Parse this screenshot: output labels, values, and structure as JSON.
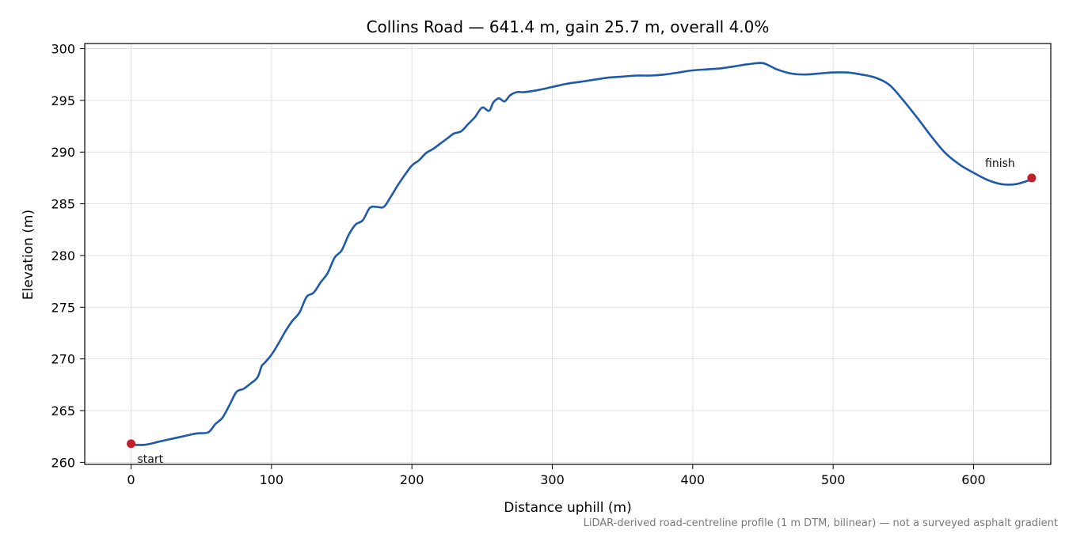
{
  "chart_data": {
    "type": "line",
    "title": "Collins Road — 641.4 m, gain 25.7 m, overall 4.0%",
    "xlabel": "Distance uphill (m)",
    "ylabel": "Elevation (m)",
    "xlim": [
      -33,
      655
    ],
    "ylim": [
      259.8,
      300.5
    ],
    "xticks": [
      0,
      100,
      200,
      300,
      400,
      500,
      600
    ],
    "yticks": [
      260,
      265,
      270,
      275,
      280,
      285,
      290,
      295,
      300
    ],
    "grid": true,
    "footnote": "LiDAR-derived road-centreline profile (1 m DTM, bilinear) — not a surveyed asphalt gradient",
    "colors": {
      "line": "#1f5aa8",
      "marker": "#c0202a",
      "grid": "#e0e0e0"
    },
    "series": [
      {
        "x": [
          0,
          10,
          20,
          30,
          40,
          47,
          55,
          60,
          65,
          70,
          75,
          80,
          85,
          90,
          93,
          95,
          100,
          105,
          110,
          115,
          120,
          125,
          130,
          135,
          140,
          145,
          150,
          155,
          160,
          165,
          170,
          175,
          180,
          185,
          190,
          195,
          200,
          205,
          210,
          215,
          220,
          225,
          230,
          235,
          240,
          245,
          250,
          255,
          258,
          262,
          266,
          270,
          275,
          280,
          290,
          300,
          310,
          320,
          330,
          340,
          350,
          360,
          370,
          380,
          390,
          400,
          410,
          420,
          430,
          440,
          450,
          460,
          470,
          480,
          490,
          500,
          510,
          520,
          530,
          540,
          550,
          560,
          570,
          580,
          590,
          600,
          610,
          620,
          630,
          640,
          641.4
        ],
        "y": [
          261.7,
          261.7,
          262.0,
          262.3,
          262.6,
          262.8,
          262.9,
          263.7,
          264.3,
          265.5,
          266.8,
          267.1,
          267.6,
          268.2,
          269.3,
          269.6,
          270.4,
          271.5,
          272.7,
          273.7,
          274.5,
          276.0,
          276.4,
          277.4,
          278.3,
          279.8,
          280.5,
          282.0,
          283.0,
          283.4,
          284.6,
          284.7,
          284.7,
          285.7,
          286.8,
          287.8,
          288.7,
          289.2,
          289.9,
          290.3,
          290.8,
          291.3,
          291.8,
          292.0,
          292.7,
          293.4,
          294.3,
          294.0,
          294.8,
          295.2,
          294.9,
          295.5,
          295.8,
          295.8,
          296.0,
          296.3,
          296.6,
          296.8,
          297.0,
          297.2,
          297.3,
          297.4,
          297.4,
          297.5,
          297.7,
          297.9,
          298.0,
          298.1,
          298.3,
          298.5,
          298.6,
          298.0,
          297.6,
          297.5,
          297.6,
          297.7,
          297.7,
          297.5,
          297.2,
          296.5,
          295.0,
          293.3,
          291.5,
          289.9,
          288.8,
          288.0,
          287.3,
          286.9,
          286.9,
          287.3,
          287.5
        ]
      }
    ],
    "annotations": [
      {
        "label": "start",
        "x": 0,
        "y": 261.8
      },
      {
        "label": "finish",
        "x": 641.4,
        "y": 287.5
      }
    ]
  }
}
